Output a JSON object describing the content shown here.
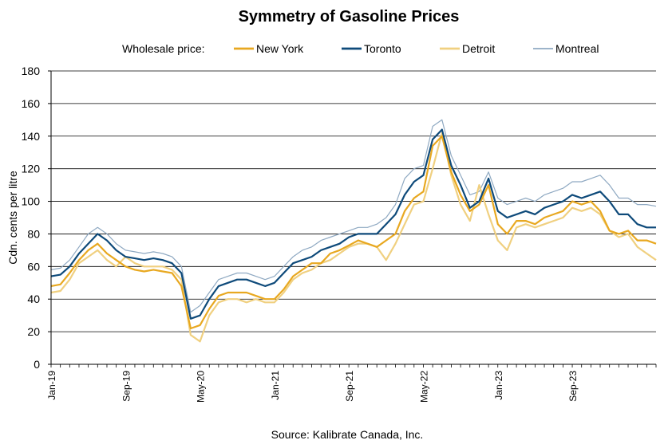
{
  "chart_data": {
    "type": "line",
    "title": "Symmetry of Gasoline Prices",
    "legend_prefix": "Wholesale price:",
    "legend_position": "top",
    "ylabel": "Cdn. cents per litre",
    "source": "Source:  Kalibrate Canada, Inc.",
    "ylim": [
      0,
      180
    ],
    "yticks": [
      0,
      20,
      40,
      60,
      80,
      100,
      120,
      140,
      160,
      180
    ],
    "grid": true,
    "x_range": [
      "2019-01",
      "2024-06"
    ],
    "xticks": [
      {
        "date": "2019-01",
        "label": "Jan-19"
      },
      {
        "date": "2019-09",
        "label": "Sep-19"
      },
      {
        "date": "2020-05",
        "label": "May-20"
      },
      {
        "date": "2021-01",
        "label": "Jan-21"
      },
      {
        "date": "2021-09",
        "label": "Sep-21"
      },
      {
        "date": "2022-05",
        "label": "May-22"
      },
      {
        "date": "2023-01",
        "label": "Jan-23"
      },
      {
        "date": "2023-09",
        "label": "Sep-23"
      }
    ],
    "x": [
      "2019-01",
      "2019-02",
      "2019-03",
      "2019-04",
      "2019-05",
      "2019-06",
      "2019-07",
      "2019-08",
      "2019-09",
      "2019-10",
      "2019-11",
      "2019-12",
      "2020-01",
      "2020-02",
      "2020-03",
      "2020-04",
      "2020-05",
      "2020-06",
      "2020-07",
      "2020-08",
      "2020-09",
      "2020-10",
      "2020-11",
      "2020-12",
      "2021-01",
      "2021-02",
      "2021-03",
      "2021-04",
      "2021-05",
      "2021-06",
      "2021-07",
      "2021-08",
      "2021-09",
      "2021-10",
      "2021-11",
      "2021-12",
      "2022-01",
      "2022-02",
      "2022-03",
      "2022-04",
      "2022-05",
      "2022-06",
      "2022-07",
      "2022-08",
      "2022-09",
      "2022-10",
      "2022-11",
      "2022-12",
      "2023-01",
      "2023-02",
      "2023-03",
      "2023-04",
      "2023-05",
      "2023-06",
      "2023-07",
      "2023-08",
      "2023-09",
      "2023-10",
      "2023-11",
      "2023-12",
      "2024-01",
      "2024-02",
      "2024-03",
      "2024-04",
      "2024-05",
      "2024-06"
    ],
    "series": [
      {
        "name": "New York",
        "color": "#E8A820",
        "width": 2.2,
        "values": [
          48,
          49,
          56,
          64,
          70,
          74,
          68,
          64,
          60,
          58,
          57,
          58,
          57,
          56,
          48,
          22,
          24,
          34,
          42,
          44,
          44,
          44,
          42,
          40,
          40,
          46,
          54,
          58,
          62,
          62,
          68,
          70,
          73,
          76,
          74,
          72,
          76,
          80,
          94,
          102,
          106,
          134,
          140,
          118,
          104,
          94,
          98,
          110,
          86,
          80,
          88,
          88,
          86,
          90,
          92,
          94,
          100,
          98,
          100,
          94,
          82,
          80,
          82,
          76,
          76,
          74
        ]
      },
      {
        "name": "Toronto",
        "color": "#0E4A7A",
        "width": 2.2,
        "values": [
          54,
          55,
          60,
          68,
          74,
          80,
          76,
          70,
          66,
          65,
          64,
          65,
          64,
          62,
          56,
          28,
          30,
          40,
          48,
          50,
          52,
          52,
          50,
          48,
          50,
          56,
          62,
          64,
          66,
          70,
          72,
          74,
          78,
          80,
          80,
          80,
          86,
          92,
          104,
          112,
          116,
          138,
          144,
          122,
          110,
          96,
          100,
          114,
          94,
          90,
          92,
          94,
          92,
          96,
          98,
          100,
          104,
          102,
          104,
          106,
          100,
          92,
          92,
          86,
          84,
          84
        ]
      },
      {
        "name": "Detroit",
        "color": "#F0D080",
        "width": 2.2,
        "values": [
          44,
          45,
          52,
          62,
          66,
          70,
          64,
          60,
          66,
          62,
          60,
          60,
          60,
          58,
          52,
          18,
          14,
          30,
          38,
          40,
          40,
          38,
          40,
          38,
          38,
          44,
          52,
          56,
          58,
          62,
          64,
          68,
          72,
          74,
          74,
          72,
          64,
          74,
          86,
          98,
          100,
          120,
          142,
          116,
          98,
          88,
          110,
          92,
          76,
          70,
          84,
          86,
          84,
          86,
          88,
          90,
          96,
          94,
          96,
          92,
          82,
          78,
          80,
          72,
          68,
          64
        ]
      },
      {
        "name": "Montreal",
        "color": "#8FA9C2",
        "width": 1.2,
        "values": [
          58,
          59,
          64,
          72,
          80,
          84,
          80,
          74,
          70,
          69,
          68,
          69,
          68,
          66,
          60,
          32,
          36,
          44,
          52,
          54,
          56,
          56,
          54,
          52,
          54,
          60,
          66,
          70,
          72,
          76,
          78,
          80,
          82,
          84,
          84,
          86,
          90,
          98,
          114,
          120,
          122,
          146,
          150,
          128,
          116,
          104,
          106,
          118,
          102,
          98,
          100,
          102,
          100,
          104,
          106,
          108,
          112,
          112,
          114,
          116,
          110,
          102,
          102,
          98,
          98,
          97
        ]
      }
    ]
  }
}
